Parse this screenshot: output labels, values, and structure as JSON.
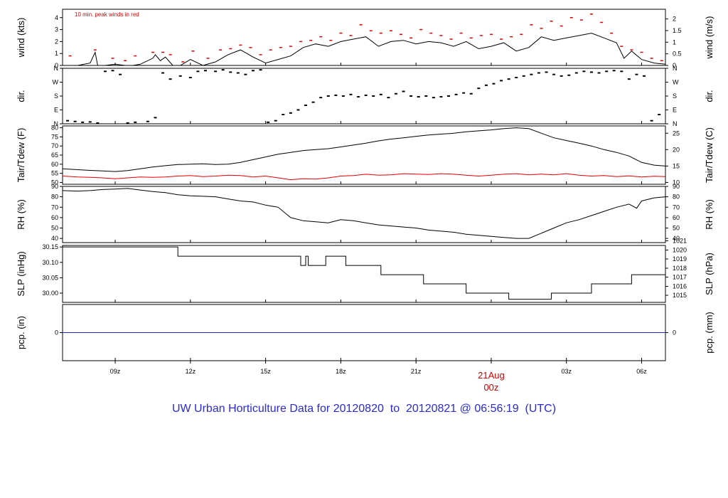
{
  "footer": {
    "prefix": "UW Urban Horticulture Data for",
    "start": "20120820",
    "to": "to",
    "end": "20120821",
    "at": "@ 06:56:19",
    "tz": "(UTC)"
  },
  "colors": {
    "line": "#000000",
    "peak": "#dd0000",
    "dew": "#e00000",
    "precip": "#2222cc",
    "title": "#2a2ad8",
    "date": "#cc0000"
  },
  "chart_data": {
    "type": "line",
    "x_unit": "hour (UTC) since 20120820 00z",
    "x_range": [
      6.9,
      30.95
    ],
    "x_ticks": [
      {
        "x": 9,
        "label": "09z"
      },
      {
        "x": 12,
        "label": "12z"
      },
      {
        "x": 15,
        "label": "15z"
      },
      {
        "x": 18,
        "label": "18z"
      },
      {
        "x": 21,
        "label": "21z"
      },
      {
        "x": 24,
        "label": "00z",
        "date_label": "21Aug"
      },
      {
        "x": 27,
        "label": "03z"
      },
      {
        "x": 30,
        "label": "06z"
      }
    ],
    "panels": [
      {
        "id": "wind",
        "ylabel": "wind (kts)",
        "ylabel_right": "wind (m/s)",
        "ylim": [
          0,
          4.7
        ],
        "yticks": [
          0,
          1,
          2,
          3,
          4
        ],
        "yticks_right": [
          {
            "v": 0,
            "label": "0"
          },
          {
            "v": 0.5,
            "label": "0.5"
          },
          {
            "v": 1,
            "label": "1"
          },
          {
            "v": 1.5,
            "label": "1.5"
          },
          {
            "v": 2,
            "label": "2"
          }
        ],
        "right_factor": 1.944,
        "annotation": "10 min. peak winds in red",
        "series": [
          {
            "style": "line",
            "x": [
              6.9,
              7.5,
              8,
              8.2,
              8.3,
              8.6,
              9,
              9.4,
              9.7,
              10,
              10.5,
              10.6,
              10.8,
              11,
              11.3,
              11.6,
              12,
              12.5,
              13,
              13.5,
              14,
              14.5,
              15,
              15.5,
              16,
              16.5,
              17,
              17.5,
              18,
              18.5,
              19,
              19.5,
              20,
              20.5,
              21,
              21.5,
              22,
              22.5,
              23,
              23.5,
              24,
              24.5,
              25,
              25.5,
              26,
              26.5,
              27,
              27.5,
              28,
              28.5,
              29,
              29.3,
              29.6,
              30,
              30.5,
              30.95
            ],
            "y": [
              0,
              0,
              0.2,
              1.1,
              0,
              0,
              0.1,
              0,
              0,
              0.1,
              0.6,
              0.9,
              0.4,
              0.7,
              0,
              0,
              0.5,
              0,
              0.3,
              0.9,
              1.3,
              0.7,
              0.2,
              0.5,
              0.8,
              1.5,
              1.8,
              1.6,
              2,
              2.2,
              2.4,
              1.6,
              2,
              2.1,
              1.8,
              2,
              1.9,
              1.6,
              2,
              1.4,
              1.6,
              1.9,
              1.2,
              1.5,
              2.4,
              2.1,
              2.3,
              2.5,
              2.7,
              2.3,
              1.9,
              0.6,
              1.2,
              0.5,
              0.2,
              0.1
            ]
          },
          {
            "style": "marks",
            "color": "peak",
            "x": [
              7.2,
              8.2,
              8.9,
              9.4,
              9.8,
              10.5,
              10.9,
              11.2,
              11.7,
              12.1,
              12.7,
              13.2,
              13.6,
              14,
              14.4,
              14.8,
              15.2,
              15.6,
              16,
              16.4,
              16.8,
              17.2,
              17.6,
              18,
              18.4,
              18.8,
              19.2,
              19.6,
              20,
              20.4,
              20.8,
              21.2,
              21.6,
              22,
              22.4,
              22.8,
              23.2,
              23.6,
              24,
              24.4,
              24.8,
              25.2,
              25.6,
              26,
              26.4,
              26.8,
              27.2,
              27.6,
              28,
              28.4,
              28.8,
              29.2,
              29.6,
              30,
              30.4,
              30.8
            ],
            "y": [
              0.8,
              1.3,
              0.6,
              0.4,
              0.8,
              1.1,
              1.1,
              0.9,
              0.3,
              1.2,
              0.6,
              1.3,
              1.4,
              1.7,
              1.5,
              0.9,
              1.3,
              1.5,
              1.6,
              2,
              2.1,
              2.4,
              2.1,
              2.7,
              2.5,
              3.4,
              2.9,
              2.7,
              2.9,
              2.6,
              2.3,
              3,
              2.7,
              2.5,
              2.2,
              2.7,
              2.3,
              2.5,
              2.6,
              2.2,
              2.4,
              2.6,
              3.4,
              3.1,
              3.7,
              3.3,
              4,
              3.8,
              4.3,
              3.6,
              2.7,
              1.6,
              1.3,
              1.1,
              0.6,
              0.4
            ]
          }
        ]
      },
      {
        "id": "dir",
        "ylabel": "dir.",
        "ylabel_right": "dir.",
        "ylim": [
          0,
          360
        ],
        "yticks_labeled": [
          {
            "v": 0,
            "label": "N"
          },
          {
            "v": 90,
            "label": "E"
          },
          {
            "v": 180,
            "label": "S"
          },
          {
            "v": 270,
            "label": "W"
          },
          {
            "v": 360,
            "label": "N"
          }
        ],
        "series": [
          {
            "style": "dots",
            "x": [
              7.1,
              7.4,
              7.7,
              8,
              8.3,
              8.6,
              8.9,
              9.2,
              9.5,
              9.8,
              10.3,
              10.6,
              10.9,
              11.2,
              11.6,
              12,
              12.3,
              12.6,
              13,
              13.3,
              13.6,
              13.9,
              14.2,
              14.5,
              14.8,
              15.1,
              15.4,
              15.7,
              16,
              16.3,
              16.6,
              16.9,
              17.2,
              17.5,
              17.8,
              18.1,
              18.4,
              18.7,
              19,
              19.3,
              19.6,
              19.9,
              20.2,
              20.5,
              20.8,
              21.1,
              21.4,
              21.7,
              22,
              22.3,
              22.6,
              22.9,
              23.2,
              23.5,
              23.8,
              24.1,
              24.4,
              24.7,
              25,
              25.3,
              25.6,
              25.9,
              26.2,
              26.5,
              26.8,
              27.1,
              27.4,
              27.7,
              28,
              28.3,
              28.6,
              28.9,
              29.2,
              29.5,
              29.8,
              30.1,
              30.4,
              30.7
            ],
            "y": [
              20,
              15,
              10,
              12,
              5,
              340,
              345,
              320,
              5,
              10,
              15,
              40,
              330,
              290,
              310,
              300,
              340,
              345,
              340,
              350,
              335,
              330,
              320,
              345,
              350,
              10,
              20,
              60,
              70,
              90,
              120,
              140,
              170,
              180,
              185,
              180,
              190,
              175,
              185,
              180,
              190,
              170,
              195,
              210,
              180,
              175,
              180,
              170,
              175,
              180,
              190,
              200,
              195,
              230,
              250,
              260,
              280,
              290,
              300,
              310,
              320,
              330,
              335,
              320,
              310,
              315,
              330,
              340,
              335,
              330,
              340,
              345,
              340,
              290,
              320,
              310,
              20,
              60
            ]
          }
        ]
      },
      {
        "id": "temp",
        "ylabel": "Tair/Tdew (F)",
        "ylabel_right": "Tair/Tdew (C)",
        "ylim": [
          49,
          81
        ],
        "yticks": [
          50,
          55,
          60,
          65,
          70,
          75,
          80
        ],
        "yticks_right": [
          {
            "v": 50,
            "label": "10"
          },
          {
            "v": 59,
            "label": "15"
          },
          {
            "v": 68,
            "label": "20"
          },
          {
            "v": 77,
            "label": "25"
          }
        ],
        "series": [
          {
            "name": "Tair",
            "style": "line",
            "x": [
              6.9,
              7.5,
              8,
              8.5,
              9,
              9.5,
              10,
              10.5,
              11,
              11.5,
              12,
              12.5,
              13,
              13.5,
              14,
              14.5,
              15,
              15.5,
              16,
              16.5,
              17,
              17.5,
              18,
              18.5,
              19,
              19.5,
              20,
              20.5,
              21,
              21.5,
              22,
              22.5,
              23,
              23.5,
              24,
              24.5,
              25,
              25.5,
              26,
              26.5,
              27,
              27.5,
              28,
              28.5,
              29,
              29.5,
              30,
              30.5,
              30.95
            ],
            "y": [
              57.5,
              57,
              56.6,
              56.3,
              56,
              56.5,
              57.5,
              58.5,
              59.2,
              59.8,
              60,
              60.2,
              59.8,
              60,
              61,
              62.5,
              64,
              65.5,
              66.5,
              67.5,
              68,
              68.5,
              69.5,
              70.5,
              71.5,
              72.8,
              73.8,
              74.5,
              75.3,
              76,
              76.5,
              77,
              77.8,
              78.3,
              78.8,
              79.5,
              80,
              79.5,
              77,
              74.5,
              73,
              71.5,
              70,
              68,
              66.5,
              64.5,
              61,
              59.5,
              59
            ]
          },
          {
            "name": "Tdew",
            "style": "line",
            "color": "dew",
            "x": [
              6.9,
              7.5,
              8,
              8.5,
              9,
              9.5,
              10,
              10.5,
              11,
              11.5,
              12,
              12.5,
              13,
              13.5,
              14,
              14.5,
              15,
              15.5,
              16,
              16.5,
              17,
              17.5,
              18,
              18.5,
              19,
              19.5,
              20,
              20.5,
              21,
              21.5,
              22,
              22.5,
              23,
              23.5,
              24,
              24.5,
              25,
              25.5,
              26,
              26.5,
              27,
              27.5,
              28,
              28.5,
              29,
              29.5,
              30,
              30.5,
              30.95
            ],
            "y": [
              53.5,
              53,
              52.8,
              52.5,
              52,
              52.5,
              53,
              52.8,
              53,
              53.5,
              53.8,
              53.2,
              53.5,
              54,
              53.8,
              53,
              53.5,
              52.5,
              51.5,
              52,
              51.8,
              52.5,
              53.5,
              53.8,
              54.5,
              54,
              54.2,
              54.8,
              54.6,
              54.4,
              54.8,
              54.5,
              54,
              53.5,
              54,
              54.5,
              54.8,
              54.2,
              54.6,
              54.2,
              54.8,
              54,
              53.5,
              53.8,
              53.2,
              53.6,
              53,
              53.4,
              53.2
            ]
          }
        ]
      },
      {
        "id": "rh",
        "ylabel": "RH (%)",
        "ylabel_right": "RH (%)",
        "ylim": [
          36,
          90
        ],
        "yticks": [
          40,
          50,
          60,
          70,
          80,
          90
        ],
        "yticks_right": [
          {
            "v": 40,
            "label": "40"
          },
          {
            "v": 50,
            "label": "50"
          },
          {
            "v": 60,
            "label": "60"
          },
          {
            "v": 70,
            "label": "70"
          },
          {
            "v": 80,
            "label": "80"
          },
          {
            "v": 90,
            "label": "90"
          }
        ],
        "series": [
          {
            "style": "line",
            "x": [
              6.9,
              7.5,
              8,
              8.5,
              9,
              9.5,
              10,
              10.5,
              11,
              11.5,
              12,
              12.5,
              13,
              13.5,
              14,
              14.5,
              15,
              15.5,
              16,
              16.5,
              17,
              17.5,
              18,
              18.5,
              19,
              19.5,
              20,
              20.5,
              21,
              21.5,
              22,
              22.5,
              23,
              23.5,
              24,
              24.5,
              25,
              25.5,
              26,
              26.5,
              27,
              27.5,
              28,
              28.5,
              29,
              29.5,
              29.8,
              30,
              30.5,
              30.95
            ],
            "y": [
              86,
              85.5,
              86,
              87,
              87.5,
              88,
              86.5,
              85,
              84,
              82,
              81,
              80.5,
              80,
              78,
              76,
              75,
              72,
              70,
              60,
              57,
              56,
              55,
              58,
              57,
              55,
              53,
              52,
              51,
              50,
              48,
              47,
              46,
              44,
              43,
              42,
              41,
              40,
              40,
              45,
              50,
              55,
              58,
              62,
              66,
              70,
              73,
              69,
              76,
              79,
              80
            ]
          }
        ]
      },
      {
        "id": "slp",
        "ylabel": "SLP (inHg)",
        "ylabel_right": "SLP (hPa)",
        "ylim": [
          29.97,
          30.155
        ],
        "yticks": [
          30.0,
          30.05,
          30.1,
          30.15
        ],
        "ytick_labels": [
          "30.00",
          "30.05",
          "30.10",
          "30.15"
        ],
        "yticks_right": [
          {
            "v": 29.993,
            "label": "1015"
          },
          {
            "v": 30.022,
            "label": "1016"
          },
          {
            "v": 30.052,
            "label": "1017"
          },
          {
            "v": 30.081,
            "label": "1018"
          },
          {
            "v": 30.111,
            "label": "1019"
          },
          {
            "v": 30.14,
            "label": "1020"
          },
          {
            "v": 30.17,
            "label": "1021"
          }
        ],
        "series": [
          {
            "style": "step",
            "x": [
              6.9,
              11.5,
              16.4,
              16.6,
              16.7,
              17.4,
              18.2,
              19.6,
              21.3,
              23,
              24.7,
              26.4,
              28,
              29.6,
              30.95
            ],
            "y": [
              30.15,
              30.12,
              30.09,
              30.12,
              30.09,
              30.12,
              30.09,
              30.06,
              30.03,
              30.0,
              29.98,
              30.0,
              30.03,
              30.06,
              30.06
            ]
          }
        ]
      },
      {
        "id": "pcp",
        "ylabel": "pcp. (in)",
        "ylabel_right": "pcp. (mm)",
        "ylim": [
          -1,
          1
        ],
        "yticks": [
          0
        ],
        "yticks_right": [
          {
            "v": 0,
            "label": "0"
          }
        ],
        "series": [
          {
            "style": "line",
            "color": "precip",
            "x": [
              6.9,
              30.95
            ],
            "y": [
              0,
              0
            ]
          }
        ]
      }
    ]
  }
}
